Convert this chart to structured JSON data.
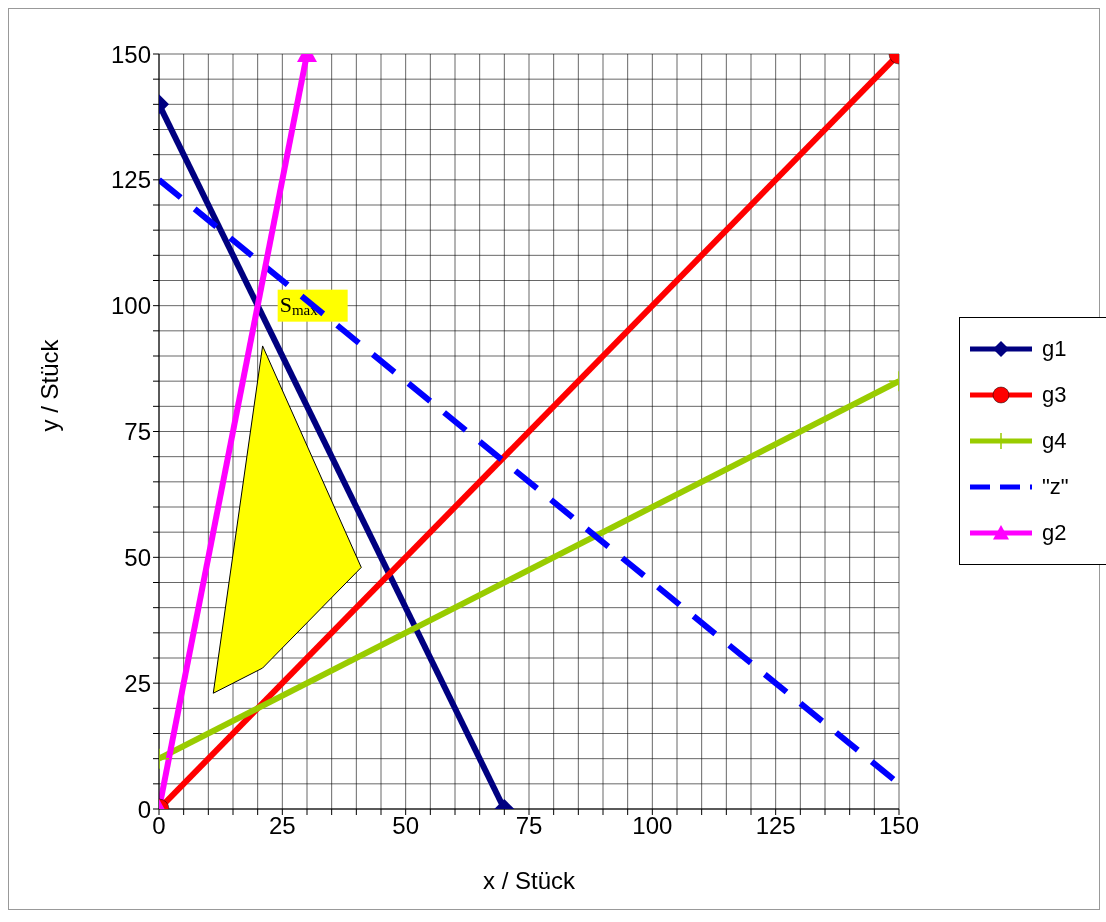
{
  "chart_data": {
    "type": "line",
    "xlabel": "x / Stück",
    "ylabel": "y / Stück",
    "xlim": [
      0,
      150
    ],
    "ylim": [
      0,
      150
    ],
    "xticks": [
      0,
      {
        "value": 5,
        "label": null
      },
      {
        "value": 10,
        "label": null
      },
      {
        "value": 15,
        "label": null
      },
      {
        "value": 20,
        "label": null
      },
      25,
      {
        "value": 30,
        "label": null
      },
      {
        "value": 35,
        "label": null
      },
      {
        "value": 40,
        "label": null
      },
      {
        "value": 45,
        "label": null
      },
      50,
      {
        "value": 55,
        "label": null
      },
      {
        "value": 60,
        "label": null
      },
      {
        "value": 65,
        "label": null
      },
      {
        "value": 70,
        "label": null
      },
      75,
      {
        "value": 80,
        "label": null
      },
      {
        "value": 85,
        "label": null
      },
      {
        "value": 90,
        "label": null
      },
      {
        "value": 95,
        "label": null
      },
      100,
      {
        "value": 105,
        "label": null
      },
      {
        "value": 110,
        "label": null
      },
      {
        "value": 115,
        "label": null
      },
      {
        "value": 120,
        "label": null
      },
      125,
      {
        "value": 130,
        "label": null
      },
      {
        "value": 135,
        "label": null
      },
      {
        "value": 140,
        "label": null
      },
      {
        "value": 145,
        "label": null
      },
      150
    ],
    "yticks": [
      0,
      {
        "value": 5,
        "label": null
      },
      {
        "value": 10,
        "label": null
      },
      {
        "value": 15,
        "label": null
      },
      {
        "value": 20,
        "label": null
      },
      25,
      {
        "value": 30,
        "label": null
      },
      {
        "value": 35,
        "label": null
      },
      {
        "value": 40,
        "label": null
      },
      {
        "value": 45,
        "label": null
      },
      50,
      {
        "value": 55,
        "label": null
      },
      {
        "value": 60,
        "label": null
      },
      {
        "value": 65,
        "label": null
      },
      {
        "value": 70,
        "label": null
      },
      75,
      {
        "value": 80,
        "label": null
      },
      {
        "value": 85,
        "label": null
      },
      {
        "value": 90,
        "label": null
      },
      {
        "value": 95,
        "label": null
      },
      100,
      {
        "value": 105,
        "label": null
      },
      {
        "value": 110,
        "label": null
      },
      {
        "value": 115,
        "label": null
      },
      {
        "value": 120,
        "label": null
      },
      125,
      {
        "value": 130,
        "label": null
      },
      {
        "value": 135,
        "label": null
      },
      {
        "value": 140,
        "label": null
      },
      {
        "value": 145,
        "label": null
      },
      150
    ],
    "grid": true,
    "legend": "right",
    "series": [
      {
        "name": "g1",
        "color": "#000080",
        "x": [
          0,
          70
        ],
        "values": [
          140,
          0
        ],
        "marker": "diamond",
        "line_style": "solid"
      },
      {
        "name": "g3",
        "color": "#ff0000",
        "x": [
          0,
          150
        ],
        "values": [
          0,
          150
        ],
        "marker": "circle",
        "line_style": "solid"
      },
      {
        "name": "g4",
        "color": "#99cc00",
        "x": [
          0,
          150
        ],
        "values": [
          10,
          85
        ],
        "marker": "cross",
        "line_style": "solid"
      },
      {
        "name": "\"z\"",
        "color": "#0000ff",
        "x": [
          0,
          150
        ],
        "values": [
          125,
          5
        ],
        "marker": "none",
        "line_style": "dashed"
      },
      {
        "name": "g2",
        "color": "#ff00ff",
        "x": [
          0,
          30
        ],
        "values": [
          0,
          150
        ],
        "marker": "triangle",
        "line_style": "solid"
      }
    ],
    "annotations": [
      {
        "text": "S$_{max}$",
        "x": 20,
        "y": 100
      }
    ]
  }
}
